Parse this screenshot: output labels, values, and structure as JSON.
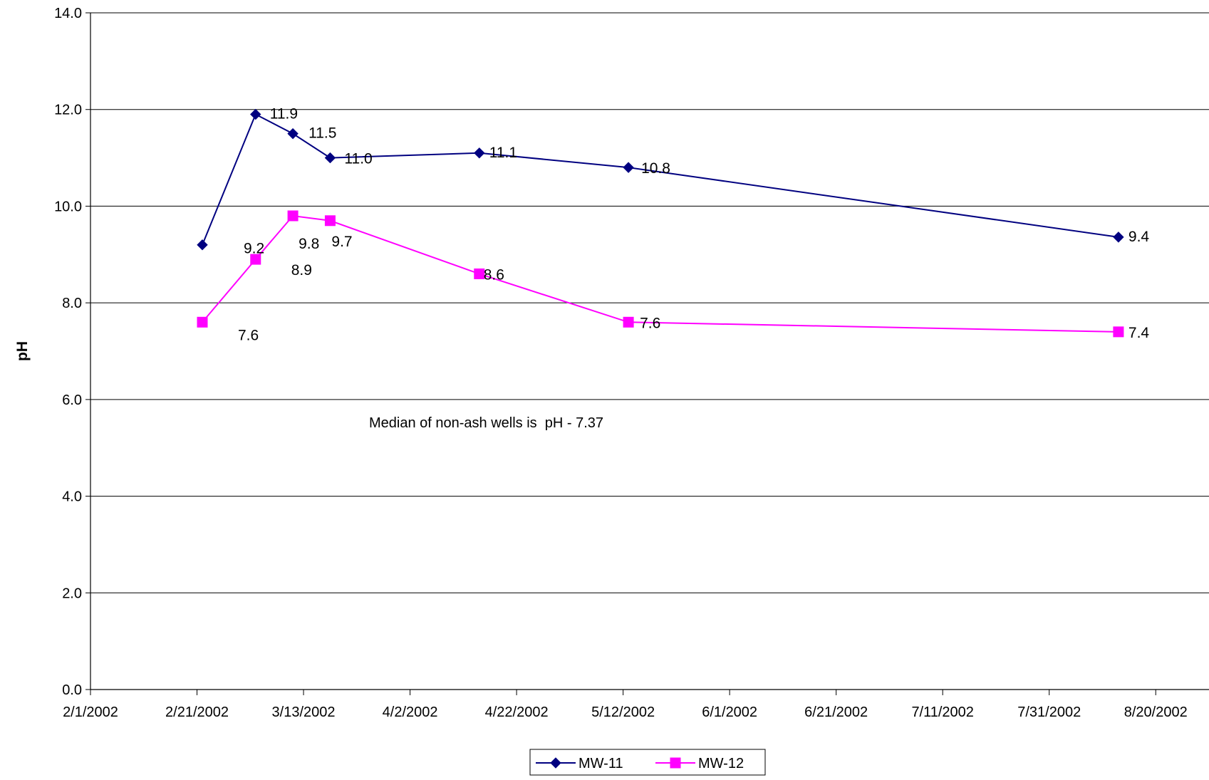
{
  "chart_data": {
    "type": "line",
    "title": "",
    "xlabel": "",
    "ylabel": "pH",
    "ylim": [
      0,
      14
    ],
    "xlim": [
      "2002-02-01",
      "2002-08-30"
    ],
    "yticks": [
      0,
      2,
      4,
      6,
      8,
      10,
      12,
      14
    ],
    "ytick_labels": [
      "0.0",
      "2.0",
      "4.0",
      "6.0",
      "8.0",
      "10.0",
      "12.0",
      "14.0"
    ],
    "xticks": [
      "2002-02-01",
      "2002-02-21",
      "2002-03-13",
      "2002-04-02",
      "2002-04-22",
      "2002-05-12",
      "2002-06-01",
      "2002-06-21",
      "2002-07-11",
      "2002-07-31",
      "2002-08-20"
    ],
    "xtick_labels": [
      "2/1/2002",
      "2/21/2002",
      "3/13/2002",
      "4/2/2002",
      "4/22/2002",
      "5/12/2002",
      "6/1/2002",
      "6/21/2002",
      "7/11/2002",
      "7/31/2002",
      "8/20/2002"
    ],
    "grid": "horizontal",
    "legend_position": "bottom",
    "annotation": "Median of non-ash wells is  pH - 7.37",
    "series": [
      {
        "name": "MW-11",
        "color": "#000080",
        "marker": "diamond",
        "x": [
          "2002-02-22",
          "2002-03-04",
          "2002-03-11",
          "2002-03-18",
          "2002-04-15",
          "2002-05-13",
          "2002-08-13"
        ],
        "values": [
          9.2,
          11.9,
          11.5,
          11.0,
          11.1,
          10.8,
          9.36
        ],
        "labels": [
          "9.2",
          "11.9",
          "11.5",
          "11.0",
          "11.1",
          "10.8",
          "9.4"
        ]
      },
      {
        "name": "MW-12",
        "color": "#ff00ff",
        "marker": "square",
        "x": [
          "2002-02-22",
          "2002-03-04",
          "2002-03-11",
          "2002-03-18",
          "2002-04-15",
          "2002-05-13",
          "2002-08-13"
        ],
        "values": [
          7.6,
          8.9,
          9.8,
          9.7,
          8.6,
          7.6,
          7.4
        ],
        "labels": [
          "7.6",
          "8.9",
          "9.8",
          "9.7",
          "8.6",
          "7.6",
          "7.4"
        ]
      }
    ]
  }
}
